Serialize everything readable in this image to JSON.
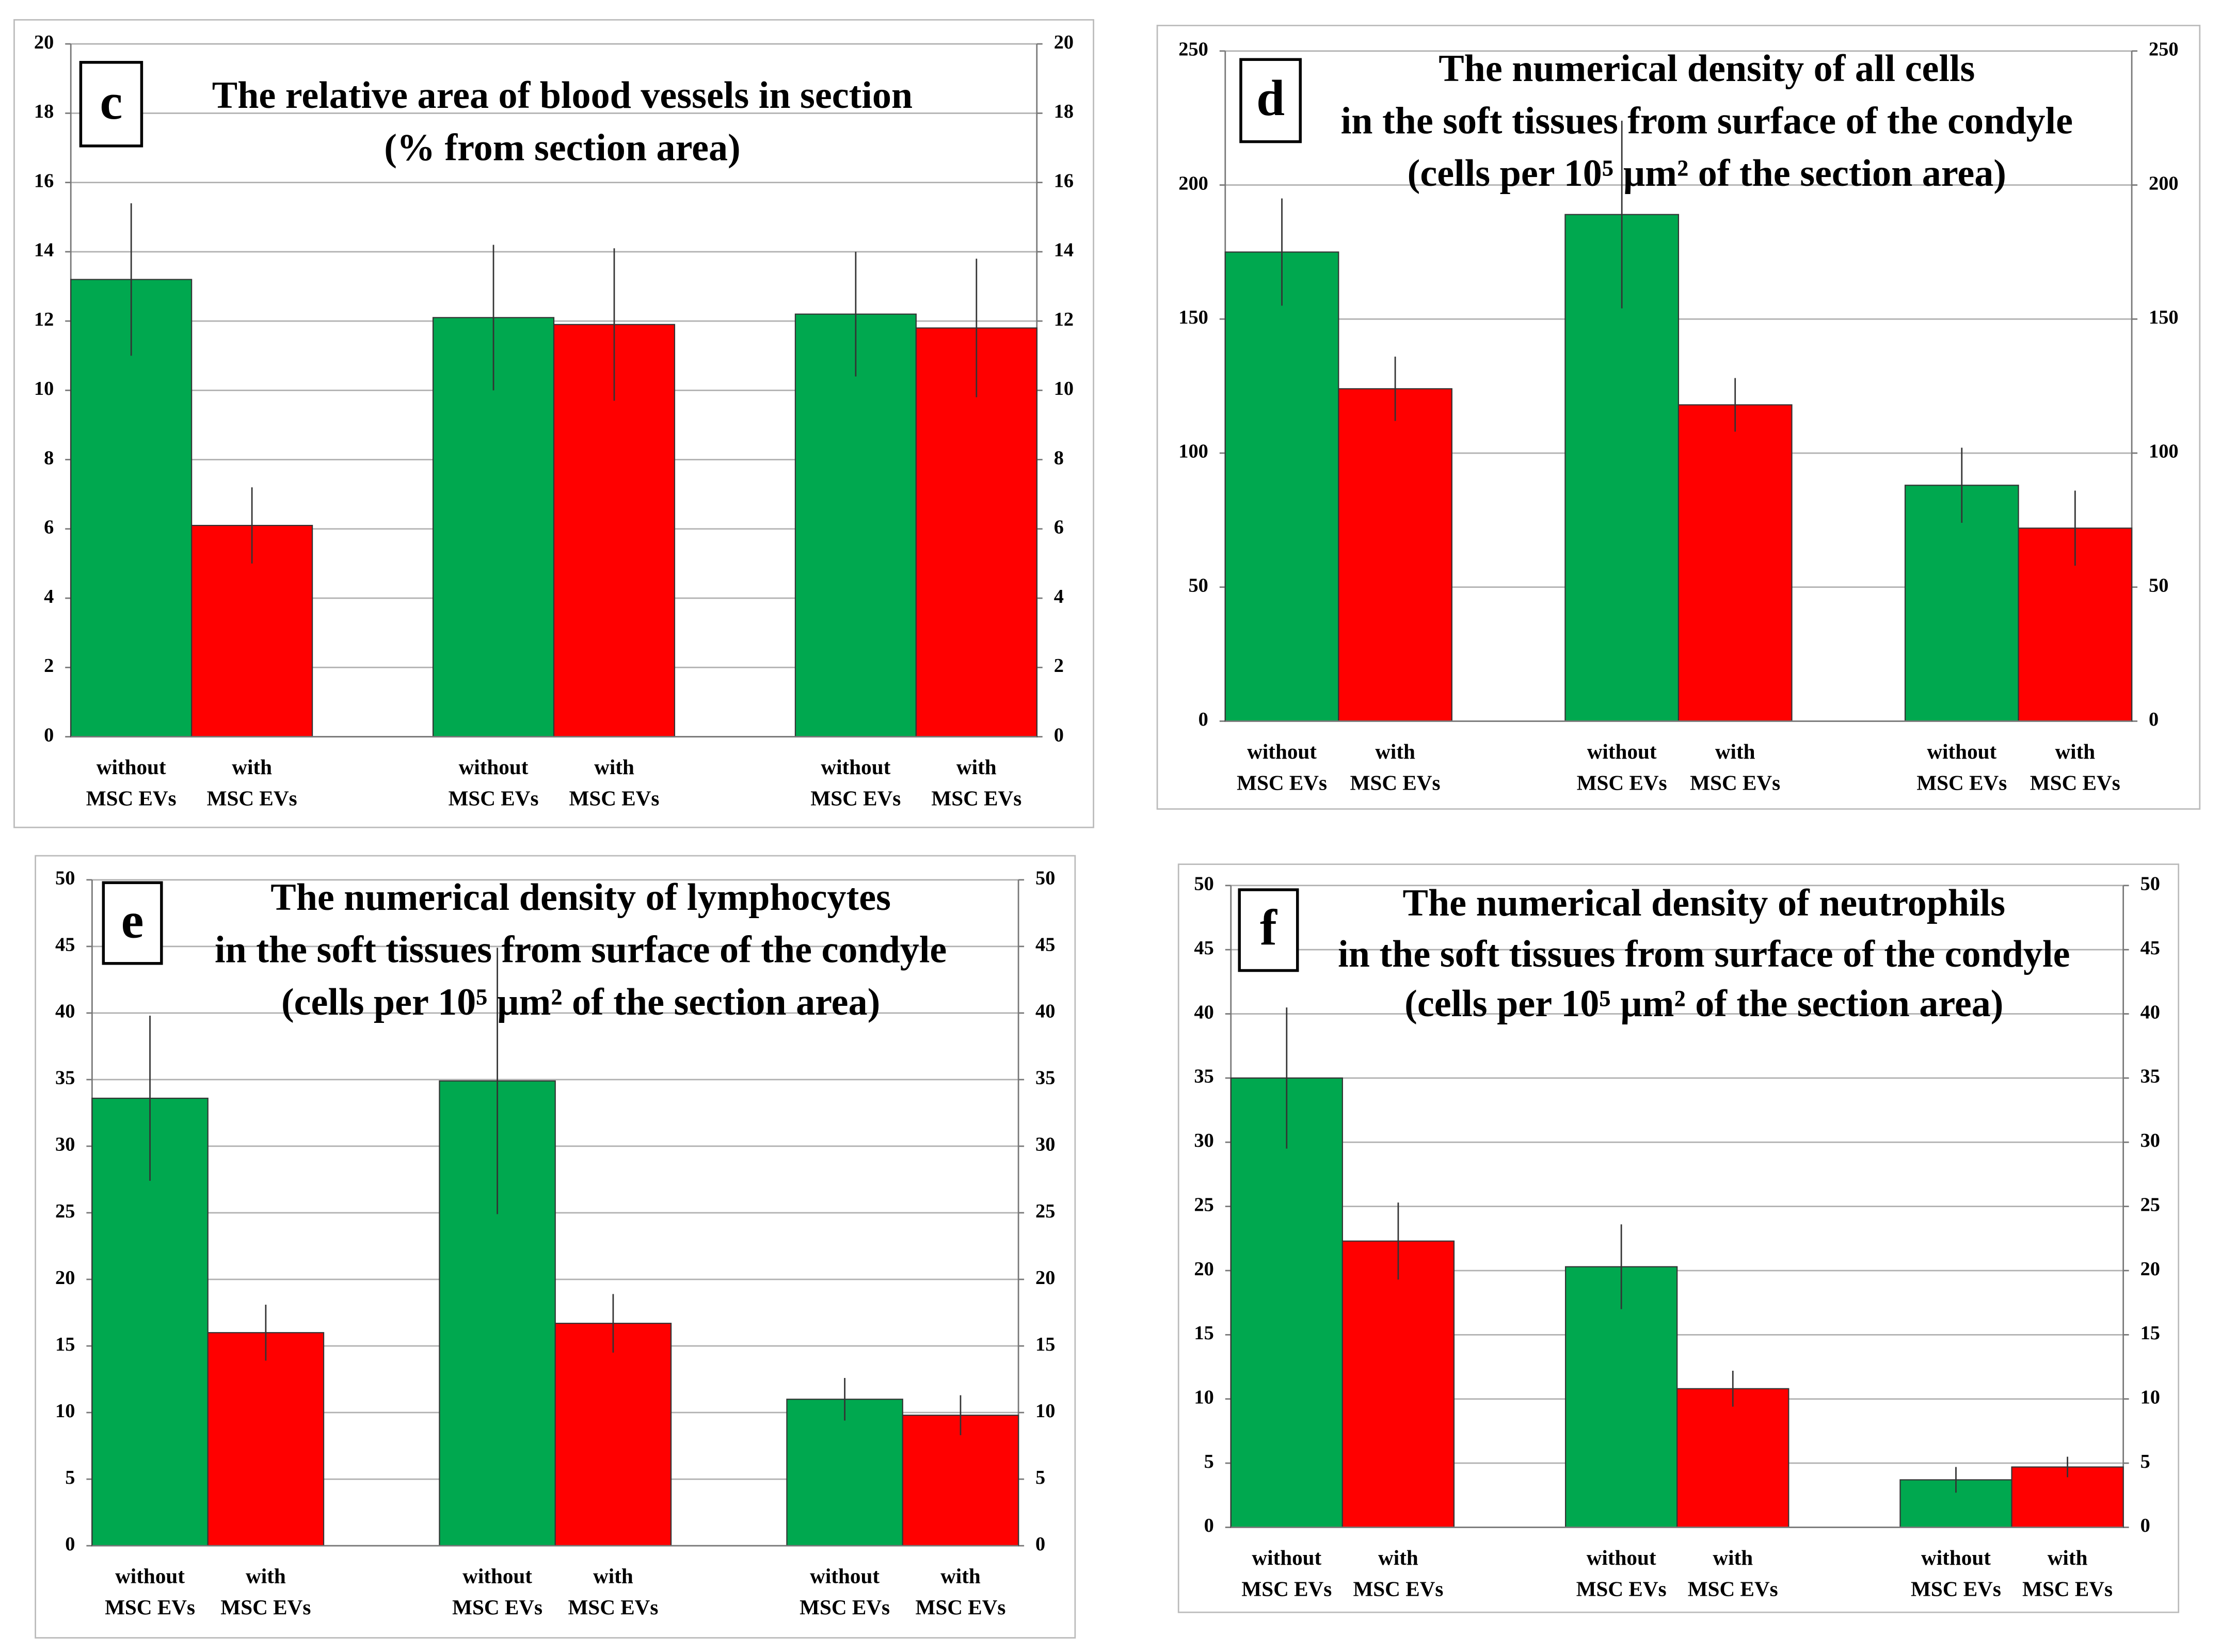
{
  "chart_data": [
    {
      "type": "bar",
      "label": "c",
      "title": [
        "The relative area of blood vessels in section",
        "(% from section area)"
      ],
      "categories": [
        [
          "without",
          "MSC EVs"
        ],
        [
          "with",
          "MSC EVs"
        ],
        [
          "without",
          "MSC EVs"
        ],
        [
          "with",
          "MSC EVs"
        ],
        [
          "without",
          "MSC EVs"
        ],
        [
          "with",
          "MSC EVs"
        ]
      ],
      "values": [
        13.2,
        6.1,
        12.1,
        11.9,
        12.2,
        11.8
      ],
      "errors": [
        2.2,
        1.1,
        2.1,
        2.2,
        1.8,
        2.0
      ],
      "colors": [
        "#00a84f",
        "#ff0000",
        "#00a84f",
        "#ff0000",
        "#00a84f",
        "#ff0000"
      ],
      "ylim": [
        0,
        20
      ],
      "yticks": [
        0,
        2,
        4,
        6,
        8,
        10,
        12,
        14,
        16,
        18,
        20
      ],
      "grid": true
    },
    {
      "type": "bar",
      "label": "d",
      "title": [
        "The numerical density of all cells",
        "in the soft tissues from surface of the condyle",
        "(cells per 10⁵ µm² of the section area)"
      ],
      "categories": [
        [
          "without",
          "MSC EVs"
        ],
        [
          "with",
          "MSC EVs"
        ],
        [
          "without",
          "MSC EVs"
        ],
        [
          "with",
          "MSC EVs"
        ],
        [
          "without",
          "MSC EVs"
        ],
        [
          "with",
          "MSC EVs"
        ]
      ],
      "values": [
        175,
        124,
        189,
        118,
        88,
        72
      ],
      "errors": [
        20,
        12,
        35,
        10,
        14,
        14
      ],
      "colors": [
        "#00a84f",
        "#ff0000",
        "#00a84f",
        "#ff0000",
        "#00a84f",
        "#ff0000"
      ],
      "ylim": [
        0,
        250
      ],
      "yticks": [
        0,
        50,
        100,
        150,
        200,
        250
      ],
      "grid": true
    },
    {
      "type": "bar",
      "label": "e",
      "title": [
        "The numerical density of lymphocytes",
        "in the soft tissues from surface of the condyle",
        "(cells per 10⁵ µm² of the section area)"
      ],
      "categories": [
        [
          "without",
          "MSC EVs"
        ],
        [
          "with",
          "MSC EVs"
        ],
        [
          "without",
          "MSC EVs"
        ],
        [
          "with",
          "MSC EVs"
        ],
        [
          "without",
          "MSC EVs"
        ],
        [
          "with",
          "MSC EVs"
        ]
      ],
      "values": [
        33.6,
        16.0,
        34.9,
        16.7,
        11.0,
        9.8
      ],
      "errors": [
        6.2,
        2.1,
        10,
        2.2,
        1.6,
        1.5
      ],
      "colors": [
        "#00a84f",
        "#ff0000",
        "#00a84f",
        "#ff0000",
        "#00a84f",
        "#ff0000"
      ],
      "ylim": [
        0,
        50
      ],
      "yticks": [
        0,
        5,
        10,
        15,
        20,
        25,
        30,
        35,
        40,
        45,
        50
      ],
      "grid": true
    },
    {
      "type": "bar",
      "label": "f",
      "title": [
        "The numerical density of neutrophils",
        "in the soft tissues from surface of the condyle",
        "(cells per 10⁵ µm² of the section area)"
      ],
      "categories": [
        [
          "without",
          "MSC EVs"
        ],
        [
          "with",
          "MSC EVs"
        ],
        [
          "without",
          "MSC EVs"
        ],
        [
          "with",
          "MSC EVs"
        ],
        [
          "without",
          "MSC EVs"
        ],
        [
          "with",
          "MSC EVs"
        ]
      ],
      "values": [
        35.0,
        22.3,
        20.3,
        10.8,
        3.7,
        4.7
      ],
      "errors": [
        5.5,
        3.0,
        3.3,
        1.4,
        1.0,
        0.8
      ],
      "colors": [
        "#00a84f",
        "#ff0000",
        "#00a84f",
        "#ff0000",
        "#00a84f",
        "#ff0000"
      ],
      "ylim": [
        0,
        50
      ],
      "yticks": [
        0,
        5,
        10,
        15,
        20,
        25,
        30,
        35,
        40,
        45,
        50
      ],
      "grid": true
    }
  ]
}
